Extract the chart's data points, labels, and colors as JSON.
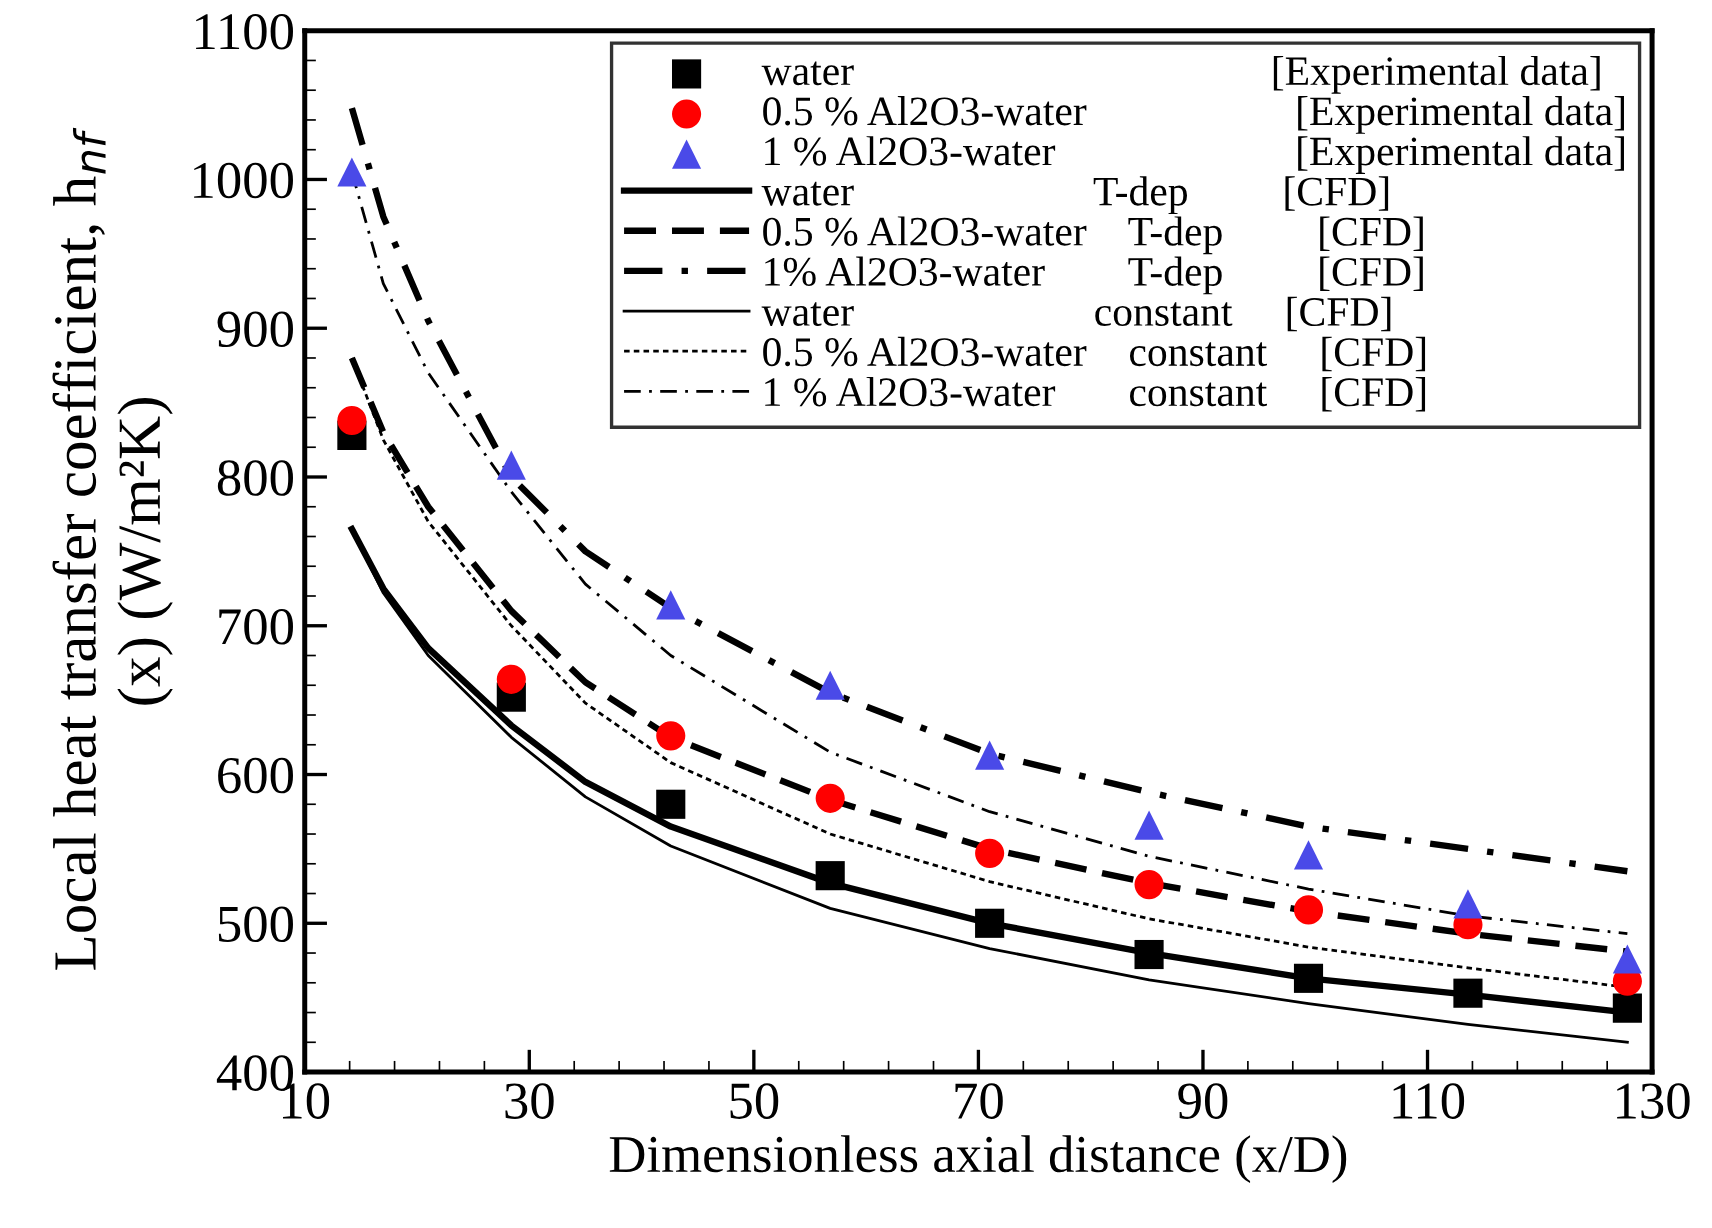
{
  "chart_data": {
    "type": "line",
    "xlabel": "Dimensionless axial distance (x/D)",
    "ylabel": "Local heat transfer coefficient, h$_{nf}$\n(x) (W/m²K)",
    "xlim": [
      10,
      130
    ],
    "xticks": [
      10,
      30,
      50,
      70,
      90,
      110,
      130
    ],
    "ylim": [
      400,
      1100
    ],
    "yticks": [
      400,
      500,
      600,
      700,
      800,
      900,
      1000,
      1100
    ],
    "grid": false,
    "legend": "top right",
    "series": [
      {
        "name": "water                                        [Experimental data]",
        "type": "scatter",
        "marker": "square",
        "color": "#000000",
        "x": [
          14.2,
          28.4,
          42.6,
          56.8,
          71,
          85.2,
          99.4,
          113.6,
          127.8
        ],
        "values": [
          828,
          652,
          580,
          532,
          500,
          479,
          463,
          453,
          443
        ]
      },
      {
        "name": "0.5 % Al2O3-water                    [Experimental data]",
        "type": "scatter",
        "marker": "circle",
        "color": "#ff0000",
        "x": [
          14.2,
          28.4,
          42.6,
          56.8,
          71,
          85.2,
          99.4,
          113.6,
          127.8
        ],
        "values": [
          838,
          664,
          626,
          584,
          547,
          526,
          509,
          499,
          461
        ]
      },
      {
        "name": "1 % Al2O3-water                       [Experimental data]",
        "type": "scatter",
        "marker": "triangle",
        "color": "#4a4ae8",
        "x": [
          14.2,
          28.4,
          42.6,
          56.8,
          71,
          85.2,
          99.4,
          113.6,
          127.8
        ],
        "values": [
          1005,
          808,
          714,
          660,
          613,
          566,
          546,
          513,
          476
        ]
      },
      {
        "name": "water                       T-dep         [CFD]",
        "line_style": "solid",
        "color": "#000000",
        "x": [
          14.2,
          17,
          21,
          28.4,
          35,
          42.6,
          56.8,
          71,
          85.2,
          99.4,
          113.6,
          127.8
        ],
        "values": [
          765,
          725,
          685,
          633,
          595,
          565,
          527,
          500,
          480,
          463,
          452,
          440
        ]
      },
      {
        "name": "0.5 % Al2O3-water    T-dep         [CFD]",
        "line_style": "dashed",
        "color": "#000000",
        "x": [
          14.2,
          17,
          21,
          28.4,
          35,
          42.6,
          56.8,
          71,
          85.2,
          99.4,
          113.6,
          127.8
        ],
        "values": [
          880,
          830,
          780,
          710,
          662,
          625,
          583,
          550,
          527,
          508,
          493,
          481
        ]
      },
      {
        "name": "1% Al2O3-water        T-dep         [CFD]",
        "line_style": "dashdot",
        "color": "#000000",
        "x": [
          14.2,
          17,
          21,
          28.4,
          35,
          42.6,
          56.8,
          71,
          85.2,
          99.4,
          113.6,
          127.8
        ],
        "values": [
          1048,
          975,
          905,
          800,
          750,
          712,
          655,
          614,
          588,
          565,
          550,
          535
        ]
      },
      {
        "name": "water                       constant     [CFD]",
        "line_style": "solid",
        "color": "#000000",
        "x": [
          14.2,
          17,
          21,
          28.4,
          35,
          42.6,
          56.8,
          71,
          85.2,
          99.4,
          113.6,
          127.8
        ],
        "values": [
          765,
          722,
          680,
          625,
          585,
          552,
          510,
          483,
          462,
          446,
          432,
          420
        ]
      },
      {
        "name": "0.5 % Al2O3-water    constant     [CFD]",
        "line_style": "dotted",
        "color": "#000000",
        "x": [
          14.2,
          17,
          21,
          28.4,
          35,
          42.6,
          56.8,
          71,
          85.2,
          99.4,
          113.6,
          127.8
        ],
        "values": [
          880,
          825,
          770,
          700,
          648,
          608,
          560,
          528,
          503,
          484,
          470,
          457
        ]
      },
      {
        "name": "1 % Al2O3-water       constant     [CFD]",
        "line_style": "dashdot",
        "color": "#000000",
        "x": [
          14.2,
          17,
          21,
          28.4,
          35,
          42.6,
          56.8,
          71,
          85.2,
          99.4,
          113.6,
          127.8
        ],
        "values": [
          1005,
          930,
          870,
          790,
          728,
          680,
          615,
          575,
          545,
          523,
          505,
          493
        ]
      }
    ]
  }
}
